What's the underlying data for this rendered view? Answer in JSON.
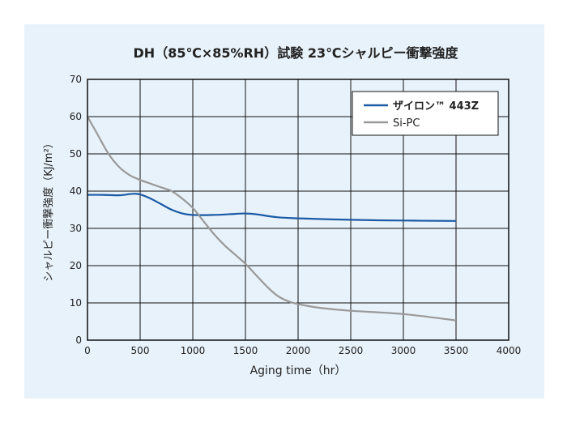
{
  "chart_data": {
    "type": "line",
    "title": "DH（85℃×85%RH）試験 23℃シャルピー衝撃強度",
    "xlabel": "Aging time（hr）",
    "ylabel": "シャルピー衝撃強度（KJ/m²）",
    "xlim": [
      0,
      4000
    ],
    "ylim": [
      0,
      70
    ],
    "x_ticks": [
      0,
      500,
      1000,
      1500,
      2000,
      2500,
      3000,
      3500,
      4000
    ],
    "y_ticks": [
      0,
      10,
      20,
      30,
      40,
      50,
      60,
      70
    ],
    "grid": true,
    "legend_position": "top-right",
    "series": [
      {
        "name": "ザイロン™ 443Z",
        "color": "#1b5aa5",
        "x": [
          0,
          150,
          300,
          400,
          450,
          500,
          600,
          700,
          800,
          900,
          1000,
          1200,
          1400,
          1500,
          1600,
          1800,
          2000,
          2500,
          3000,
          3500
        ],
        "y": [
          39,
          39,
          38.9,
          39.2,
          39.3,
          39.1,
          38,
          36.5,
          35,
          34,
          33.6,
          33.6,
          33.9,
          34,
          33.8,
          33,
          32.7,
          32.3,
          32.1,
          32
        ]
      },
      {
        "name": "Si-PC",
        "color": "#999999",
        "x": [
          0,
          100,
          200,
          300,
          400,
          500,
          600,
          700,
          800,
          900,
          1000,
          1100,
          1200,
          1300,
          1400,
          1500,
          1600,
          1700,
          1800,
          1900,
          2000,
          2200,
          2500,
          3000,
          3500
        ],
        "y": [
          60,
          55,
          50,
          46.5,
          44.3,
          43,
          42,
          41,
          40,
          38,
          35.5,
          32,
          28.5,
          25.5,
          23,
          20.5,
          17.5,
          14.5,
          12,
          10.5,
          9.7,
          8.7,
          7.9,
          7,
          5.3
        ]
      }
    ]
  }
}
